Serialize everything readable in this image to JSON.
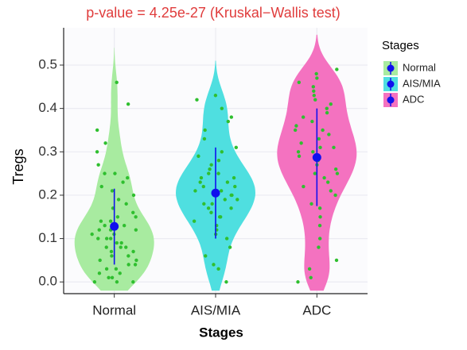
{
  "chart_data": {
    "type": "violin",
    "title": "p-value = 4.25e-27 (Kruskal−Wallis test)",
    "x_label": "Stages",
    "y_label": "Tregs",
    "legend_title": "Stages",
    "categories": [
      "Normal",
      "AIS/MIA",
      "ADC"
    ],
    "ylim": [
      -0.027,
      0.586
    ],
    "yticks": [
      {
        "value": 0,
        "label": "0.0"
      },
      0.1,
      0.2,
      0.3,
      0.4,
      0.5
    ],
    "grid": true,
    "point_color": "#2fbf2f",
    "mean_color": "#1010ee",
    "series": [
      {
        "name": "Normal",
        "color": "#a8eba0",
        "mean": 0.128,
        "lower": 0.04,
        "upper": 0.215,
        "points": [
          0,
          0,
          0,
          0.01,
          0.01,
          0.02,
          0.02,
          0.03,
          0.03,
          0.04,
          0.04,
          0.05,
          0.05,
          0.06,
          0.06,
          0.07,
          0.07,
          0.08,
          0.08,
          0.08,
          0.09,
          0.09,
          0.1,
          0.1,
          0.1,
          0.11,
          0.11,
          0.12,
          0.12,
          0.12,
          0.13,
          0.13,
          0.14,
          0.14,
          0.15,
          0.15,
          0.16,
          0.17,
          0.18,
          0.19,
          0.2,
          0.21,
          0.22,
          0.23,
          0.24,
          0.25,
          0.25,
          0.27,
          0.3,
          0.32,
          0.35,
          0.41,
          0.46
        ]
      },
      {
        "name": "AIS/MIA",
        "color": "#4fdfe0",
        "mean": 0.205,
        "lower": 0.1,
        "upper": 0.31,
        "points": [
          0,
          0.03,
          0.04,
          0.06,
          0.08,
          0.1,
          0.11,
          0.12,
          0.13,
          0.14,
          0.15,
          0.15,
          0.16,
          0.17,
          0.17,
          0.18,
          0.18,
          0.19,
          0.19,
          0.2,
          0.2,
          0.21,
          0.21,
          0.22,
          0.22,
          0.23,
          0.23,
          0.24,
          0.24,
          0.25,
          0.25,
          0.26,
          0.27,
          0.28,
          0.29,
          0.3,
          0.31,
          0.33,
          0.35,
          0.37,
          0.38,
          0.4,
          0.42,
          0.43
        ]
      },
      {
        "name": "ADC",
        "color": "#f472c0",
        "mean": 0.287,
        "lower": 0.175,
        "upper": 0.4,
        "points": [
          0,
          0.01,
          0.03,
          0.05,
          0.08,
          0.1,
          0.13,
          0.15,
          0.17,
          0.18,
          0.2,
          0.21,
          0.22,
          0.23,
          0.24,
          0.25,
          0.25,
          0.26,
          0.27,
          0.28,
          0.28,
          0.29,
          0.3,
          0.3,
          0.31,
          0.31,
          0.32,
          0.33,
          0.34,
          0.35,
          0.35,
          0.36,
          0.37,
          0.38,
          0.39,
          0.4,
          0.41,
          0.42,
          0.43,
          0.44,
          0.45,
          0.46,
          0.47,
          0.48,
          0.49
        ]
      }
    ]
  }
}
